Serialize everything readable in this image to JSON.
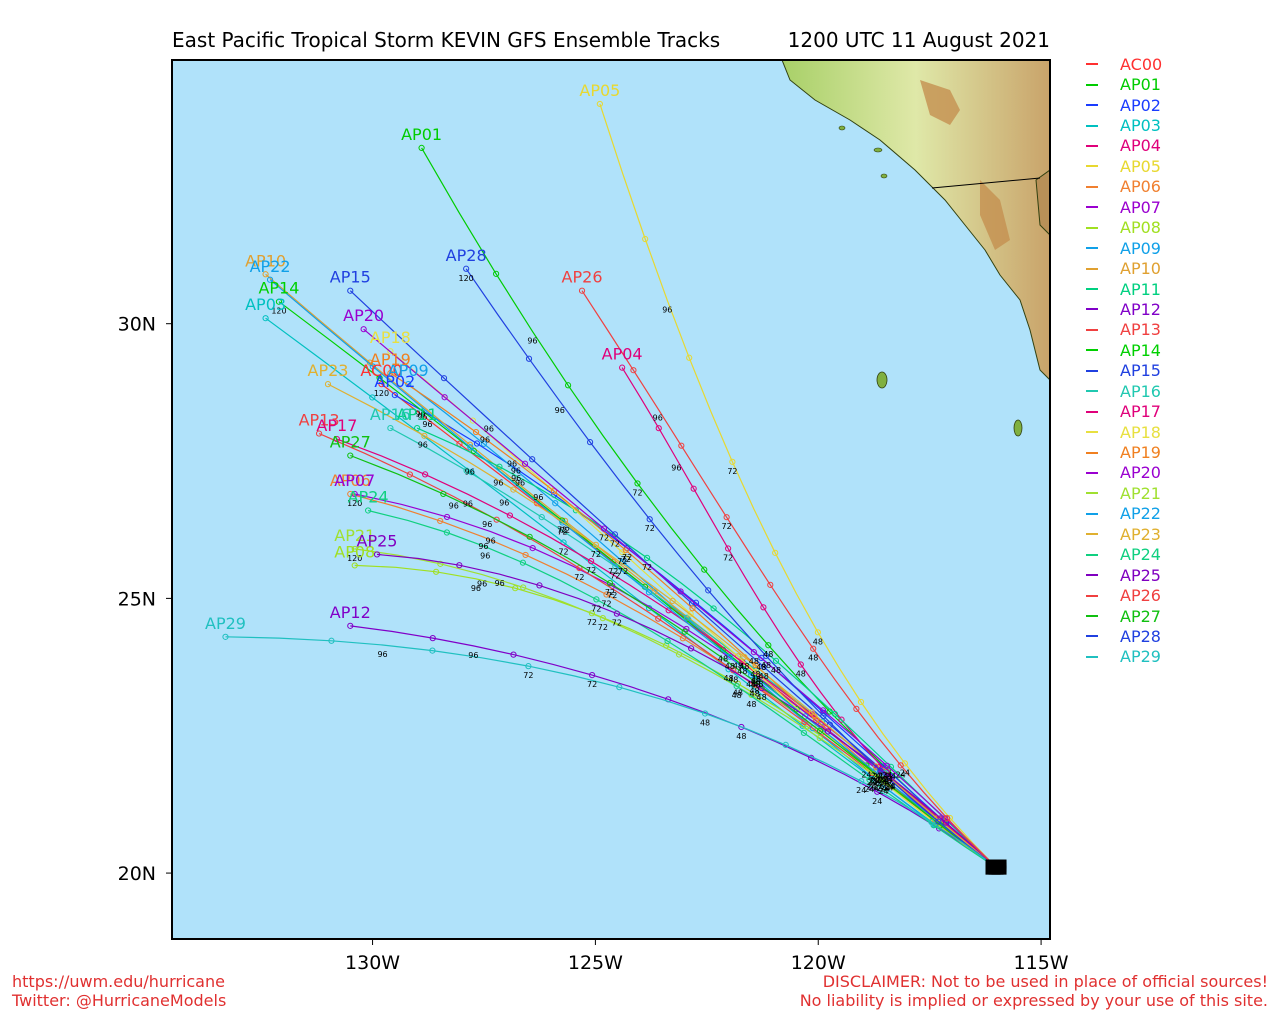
{
  "header": {
    "title": "East Pacific Tropical Storm KEVIN GFS Ensemble Tracks",
    "datetime": "1200 UTC 11 August 2021"
  },
  "map": {
    "colors": {
      "ocean": "#b0e2fa",
      "land_low": "#9ccc5a",
      "land_mid": "#d8e3a0",
      "land_high": "#c8a060",
      "border": "#000000"
    },
    "x_ticks": [
      "130W",
      "125W",
      "120W",
      "115W"
    ],
    "y_ticks": [
      "20N",
      "25N",
      "30N"
    ],
    "lon_range": [
      -134.5,
      -114.8
    ],
    "lat_range": [
      18.8,
      34.8
    ],
    "hour_labels": [
      "24",
      "48",
      "72",
      "96",
      "120"
    ]
  },
  "chart_data": {
    "type": "map-track",
    "title": "East Pacific Tropical Storm KEVIN GFS Ensemble Tracks",
    "lon_range": [
      -134.5,
      -114.8
    ],
    "lat_range": [
      18.8,
      34.8
    ],
    "start": {
      "lon": -116.0,
      "lat": 20.1
    },
    "series": [
      {
        "name": "AC00",
        "color": "#ff3030",
        "end": [
          -129.8,
          28.9
        ]
      },
      {
        "name": "AP01",
        "color": "#00cc00",
        "end": [
          -128.9,
          33.2
        ]
      },
      {
        "name": "AP02",
        "color": "#1a3cff",
        "end": [
          -129.5,
          28.7
        ]
      },
      {
        "name": "AP03",
        "color": "#00c0c0",
        "end": [
          -132.4,
          30.1
        ]
      },
      {
        "name": "AP04",
        "color": "#e0007a",
        "end": [
          -124.4,
          29.2
        ]
      },
      {
        "name": "AP05",
        "color": "#e8d830",
        "end": [
          -124.9,
          34.0
        ]
      },
      {
        "name": "AP06",
        "color": "#f08030",
        "end": [
          -130.5,
          26.9
        ]
      },
      {
        "name": "AP07",
        "color": "#9a00d0",
        "end": [
          -130.4,
          26.9
        ]
      },
      {
        "name": "AP08",
        "color": "#a0e020",
        "end": [
          -130.4,
          25.6
        ]
      },
      {
        "name": "AP09",
        "color": "#10a0e8",
        "end": [
          -129.2,
          28.9
        ]
      },
      {
        "name": "AP10",
        "color": "#e0a030",
        "end": [
          -132.4,
          30.9
        ]
      },
      {
        "name": "AP11",
        "color": "#00d080",
        "end": [
          -129.0,
          28.1
        ]
      },
      {
        "name": "AP12",
        "color": "#8000c8",
        "end": [
          -130.5,
          24.5
        ]
      },
      {
        "name": "AP13",
        "color": "#f04040",
        "end": [
          -131.2,
          28.0
        ]
      },
      {
        "name": "AP14",
        "color": "#00d000",
        "end": [
          -132.1,
          30.4
        ]
      },
      {
        "name": "AP15",
        "color": "#2040e0",
        "end": [
          -130.5,
          30.6
        ]
      },
      {
        "name": "AP16",
        "color": "#20c8b0",
        "end": [
          -129.6,
          28.1
        ]
      },
      {
        "name": "AP17",
        "color": "#e0007a",
        "end": [
          -130.8,
          27.9
        ]
      },
      {
        "name": "AP18",
        "color": "#e8e040",
        "end": [
          -129.6,
          29.5
        ]
      },
      {
        "name": "AP19",
        "color": "#f08020",
        "end": [
          -129.6,
          29.1
        ]
      },
      {
        "name": "AP20",
        "color": "#9a00d0",
        "end": [
          -130.2,
          29.9
        ]
      },
      {
        "name": "AP21",
        "color": "#a0e030",
        "end": [
          -130.4,
          25.9
        ]
      },
      {
        "name": "AP22",
        "color": "#10a0e8",
        "end": [
          -132.3,
          30.8
        ]
      },
      {
        "name": "AP23",
        "color": "#e0b030",
        "end": [
          -131.0,
          28.9
        ]
      },
      {
        "name": "AP24",
        "color": "#10d080",
        "end": [
          -130.1,
          26.6
        ]
      },
      {
        "name": "AP25",
        "color": "#8000c0",
        "end": [
          -129.9,
          25.8
        ]
      },
      {
        "name": "AP26",
        "color": "#f04040",
        "end": [
          -125.3,
          30.6
        ]
      },
      {
        "name": "AP27",
        "color": "#10c010",
        "end": [
          -130.5,
          27.6
        ]
      },
      {
        "name": "AP28",
        "color": "#2040e0",
        "end": [
          -127.9,
          31.0
        ]
      },
      {
        "name": "AP29",
        "color": "#20c0c0",
        "end": [
          -133.3,
          24.3
        ]
      }
    ]
  },
  "legend": {
    "items": [
      {
        "label": "AC00",
        "color": "#ff3030"
      },
      {
        "label": "AP01",
        "color": "#00cc00"
      },
      {
        "label": "AP02",
        "color": "#1a3cff"
      },
      {
        "label": "AP03",
        "color": "#00c0c0"
      },
      {
        "label": "AP04",
        "color": "#e0007a"
      },
      {
        "label": "AP05",
        "color": "#e8d830"
      },
      {
        "label": "AP06",
        "color": "#f08030"
      },
      {
        "label": "AP07",
        "color": "#9a00d0"
      },
      {
        "label": "AP08",
        "color": "#a0e020"
      },
      {
        "label": "AP09",
        "color": "#10a0e8"
      },
      {
        "label": "AP10",
        "color": "#e0a030"
      },
      {
        "label": "AP11",
        "color": "#00d080"
      },
      {
        "label": "AP12",
        "color": "#8000c8"
      },
      {
        "label": "AP13",
        "color": "#f04040"
      },
      {
        "label": "AP14",
        "color": "#00d000"
      },
      {
        "label": "AP15",
        "color": "#2040e0"
      },
      {
        "label": "AP16",
        "color": "#20c8b0"
      },
      {
        "label": "AP17",
        "color": "#e0007a"
      },
      {
        "label": "AP18",
        "color": "#e8e040"
      },
      {
        "label": "AP19",
        "color": "#f08020"
      },
      {
        "label": "AP20",
        "color": "#9a00d0"
      },
      {
        "label": "AP21",
        "color": "#a0e030"
      },
      {
        "label": "AP22",
        "color": "#10a0e8"
      },
      {
        "label": "AP23",
        "color": "#e0b030"
      },
      {
        "label": "AP24",
        "color": "#10d080"
      },
      {
        "label": "AP25",
        "color": "#8000c0"
      },
      {
        "label": "AP26",
        "color": "#f04040"
      },
      {
        "label": "AP27",
        "color": "#10c010"
      },
      {
        "label": "AP28",
        "color": "#2040e0"
      },
      {
        "label": "AP29",
        "color": "#20c0c0"
      }
    ]
  },
  "footer": {
    "url": "https://uwm.edu/hurricane",
    "twitter": "Twitter: @HurricaneModels",
    "disclaimer_1": "DISCLAIMER: Not to be used in place of official sources!",
    "disclaimer_2": "No liability is implied or expressed by your use of this site."
  }
}
